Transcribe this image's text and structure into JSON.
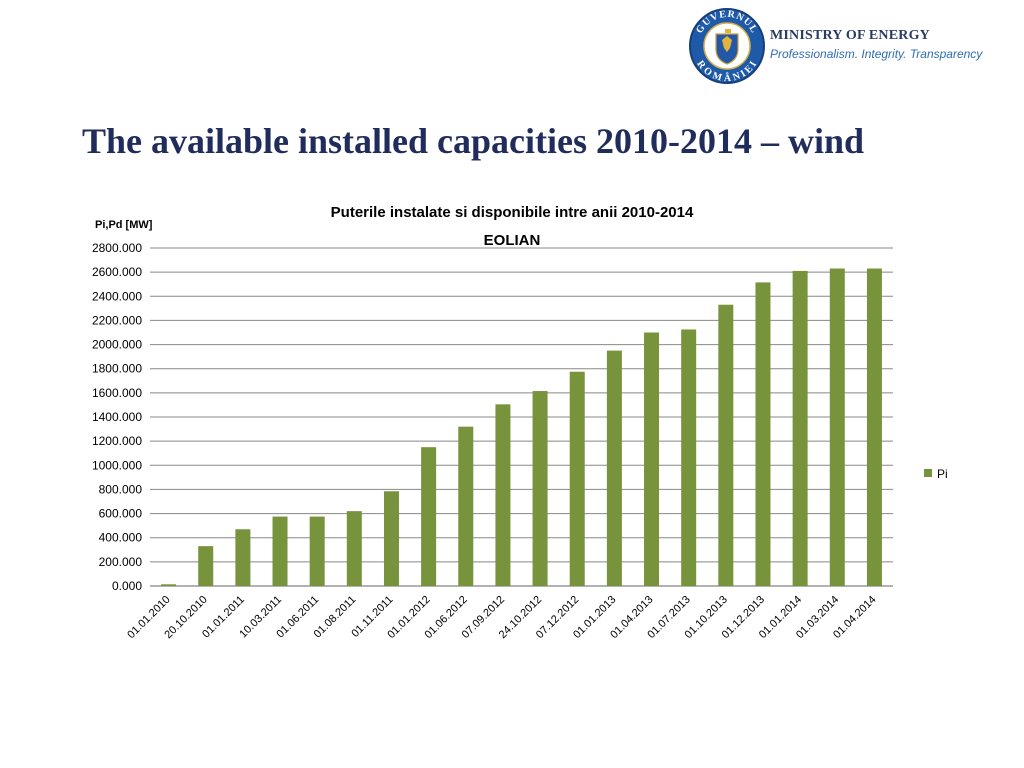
{
  "header": {
    "ministry_name": "MINISTRY OF ENERGY",
    "tagline": "Professionalism. Integrity. Transparency",
    "logo_text_top": "GUVERNUL",
    "logo_text_bottom": "ROMÂNIEI"
  },
  "slide_title": "The available installed capacities 2010-2014 – wind",
  "colors": {
    "bar": "#77933c",
    "title": "#1f2c5c",
    "grid": "#888888",
    "tagline": "#2f6db5"
  },
  "chart_data": {
    "type": "bar",
    "title_line1": "Puterile instalate si disponibile intre anii 2010-2014",
    "title_line2": "EOLIAN",
    "ylabel": "Pi,Pd [MW]",
    "ylim": [
      0,
      2800
    ],
    "yticks": [
      "0.000",
      "200.000",
      "400.000",
      "600.000",
      "800.000",
      "1000.000",
      "1200.000",
      "1400.000",
      "1600.000",
      "1800.000",
      "2000.000",
      "2200.000",
      "2400.000",
      "2600.000",
      "2800.000"
    ],
    "categories": [
      "01.01.2010",
      "20.10.2010",
      "01.01.2011",
      "10.03.2011",
      "01.06.2011",
      "01.08.2011",
      "01.11.2011",
      "01.01.2012",
      "01.06.2012",
      "07.09.2012",
      "24.10.2012",
      "07.12.2012",
      "01.01.2013",
      "01.04.2013",
      "01.07.2013",
      "01.10.2013",
      "01.12.2013",
      "01.01.2014",
      "01.03.2014",
      "01.04.2014"
    ],
    "series": [
      {
        "name": "Pi",
        "values": [
          14,
          330,
          470,
          575,
          575,
          620,
          785,
          1150,
          1320,
          1505,
          1615,
          1775,
          1950,
          2100,
          2125,
          2330,
          2515,
          2610,
          2630,
          2630
        ]
      }
    ],
    "legend_position": "right"
  }
}
